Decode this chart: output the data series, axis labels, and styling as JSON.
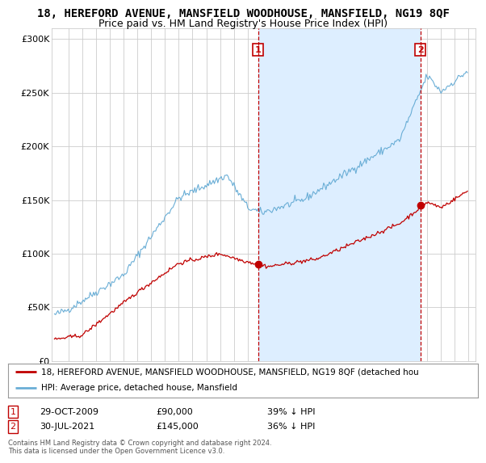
{
  "title": "18, HEREFORD AVENUE, MANSFIELD WOODHOUSE, MANSFIELD, NG19 8QF",
  "subtitle": "Price paid vs. HM Land Registry's House Price Index (HPI)",
  "ylim": [
    0,
    310000
  ],
  "yticks": [
    0,
    50000,
    100000,
    150000,
    200000,
    250000,
    300000
  ],
  "ytick_labels": [
    "£0",
    "£50K",
    "£100K",
    "£150K",
    "£200K",
    "£250K",
    "£300K"
  ],
  "hpi_color": "#6aaed6",
  "price_color": "#c00000",
  "shade_color": "#ddeeff",
  "marker1_price": 90000,
  "marker2_price": 145000,
  "marker1_label": "29-OCT-2009",
  "marker2_label": "30-JUL-2021",
  "marker1_pct": "39% ↓ HPI",
  "marker2_pct": "36% ↓ HPI",
  "legend_property": "18, HEREFORD AVENUE, MANSFIELD WOODHOUSE, MANSFIELD, NG19 8QF (detached hou",
  "legend_hpi": "HPI: Average price, detached house, Mansfield",
  "footer": "Contains HM Land Registry data © Crown copyright and database right 2024.\nThis data is licensed under the Open Government Licence v3.0.",
  "bg_color": "#ffffff",
  "grid_color": "#cccccc",
  "title_fontsize": 10,
  "subtitle_fontsize": 9
}
